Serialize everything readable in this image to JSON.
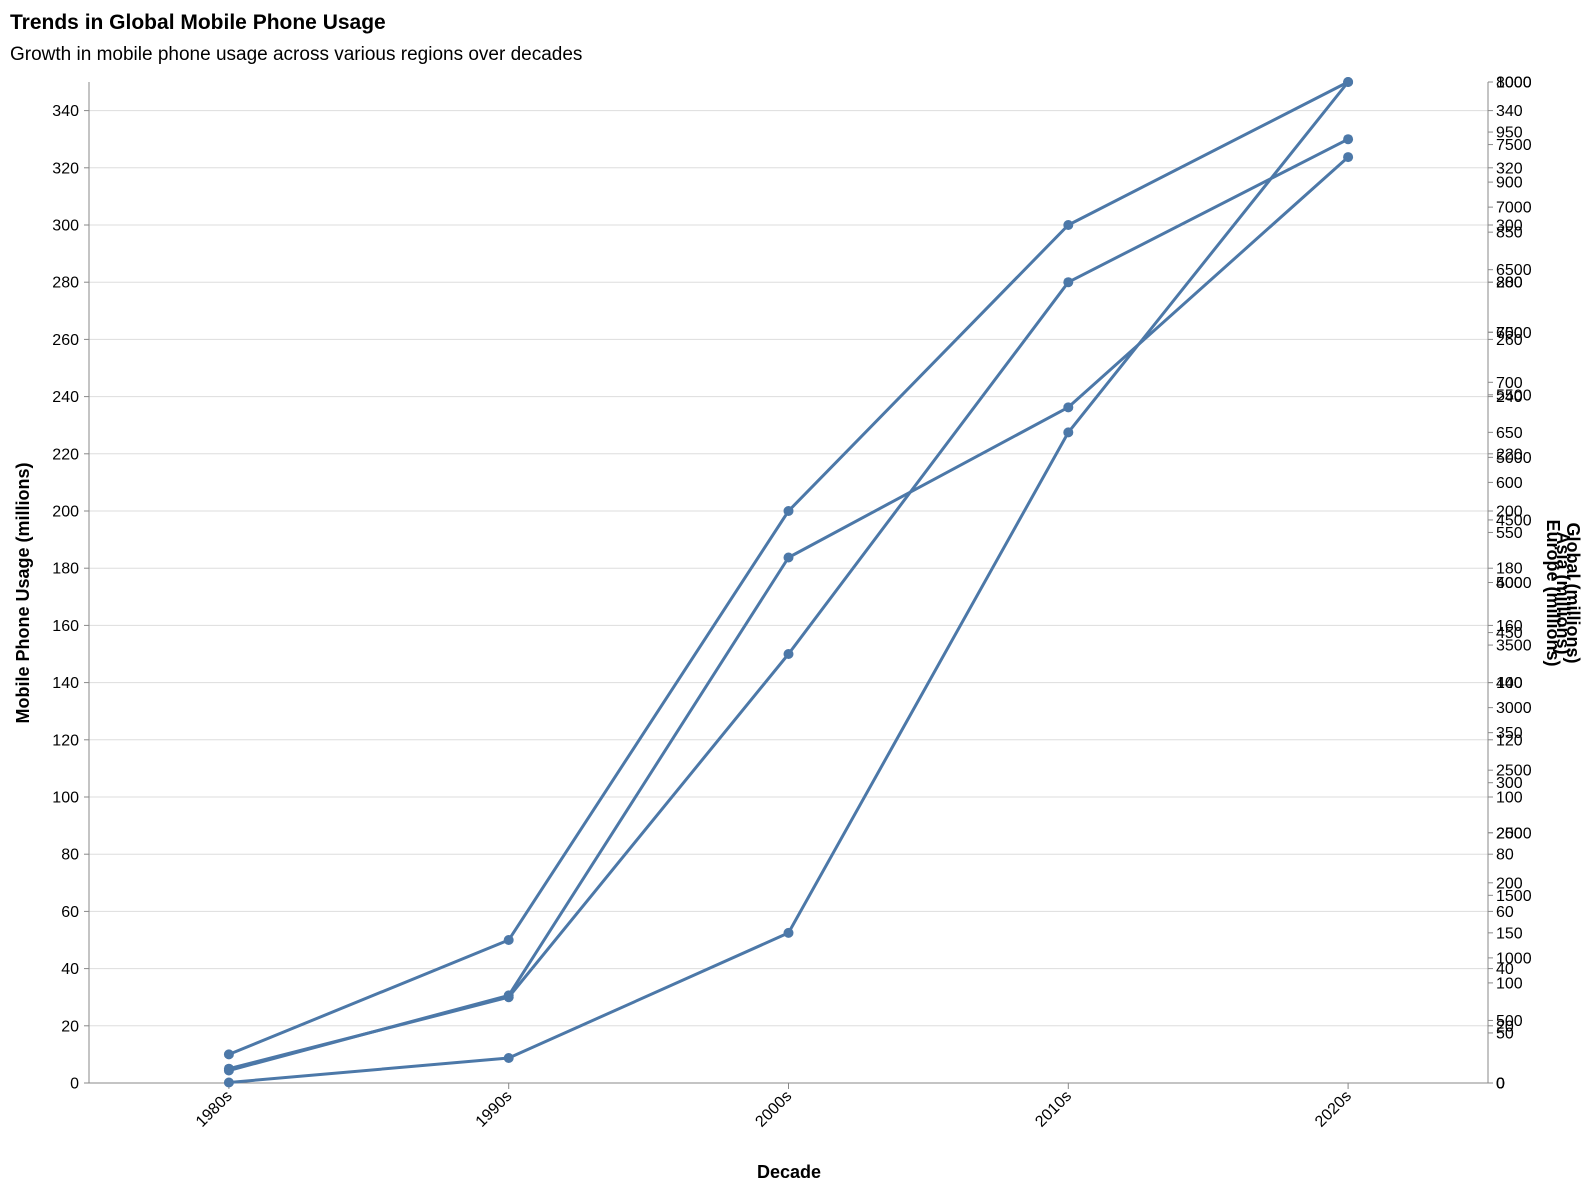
{
  "chart_data": {
    "type": "line",
    "title": "Trends in Global Mobile Phone Usage",
    "subtitle": "Growth in mobile phone usage across various regions over decades",
    "xlabel": "Decade",
    "ylabel": "Mobile Phone Usage (millions)",
    "categories": [
      "1980s",
      "1990s",
      "2000s",
      "2010s",
      "2020s"
    ],
    "line_color": "#4c78a8",
    "grid": true,
    "left_axis": {
      "ylim": [
        0,
        350
      ],
      "ticks": [
        0,
        20,
        40,
        60,
        80,
        100,
        120,
        140,
        160,
        180,
        200,
        220,
        240,
        260,
        280,
        300,
        320,
        340
      ]
    },
    "right_axes": [
      {
        "title": "Global (millions)",
        "ylim": [
          0,
          8000
        ],
        "ticks": [
          0,
          500,
          1000,
          1500,
          2000,
          2500,
          3000,
          3500,
          4000,
          4500,
          5000,
          5500,
          6000,
          6500,
          7000,
          7500,
          8000
        ]
      },
      {
        "title": "Asia (millions)",
        "ylim": [
          0,
          1000
        ],
        "ticks": [
          0,
          50,
          100,
          150,
          200,
          250,
          300,
          350,
          400,
          450,
          500,
          550,
          600,
          650,
          700,
          750,
          800,
          850,
          900,
          950,
          1000
        ]
      },
      {
        "title": "Europe (millions)",
        "ylim": [
          0,
          350
        ],
        "ticks": [
          0,
          20,
          40,
          60,
          80,
          100,
          120,
          140,
          160,
          180,
          200,
          220,
          240,
          260,
          280,
          300,
          320,
          340
        ]
      }
    ],
    "series": [
      {
        "axis": "left",
        "values": [
          10,
          50,
          200,
          300,
          350
        ]
      },
      {
        "axis": "right-0",
        "values": [
          100,
          700,
          4200,
          5400,
          7400
        ]
      },
      {
        "axis": "right-1",
        "values": [
          0.5,
          25,
          150,
          650,
          1000
        ]
      },
      {
        "axis": "right-2",
        "values": [
          5,
          30,
          150,
          280,
          330
        ]
      }
    ]
  }
}
